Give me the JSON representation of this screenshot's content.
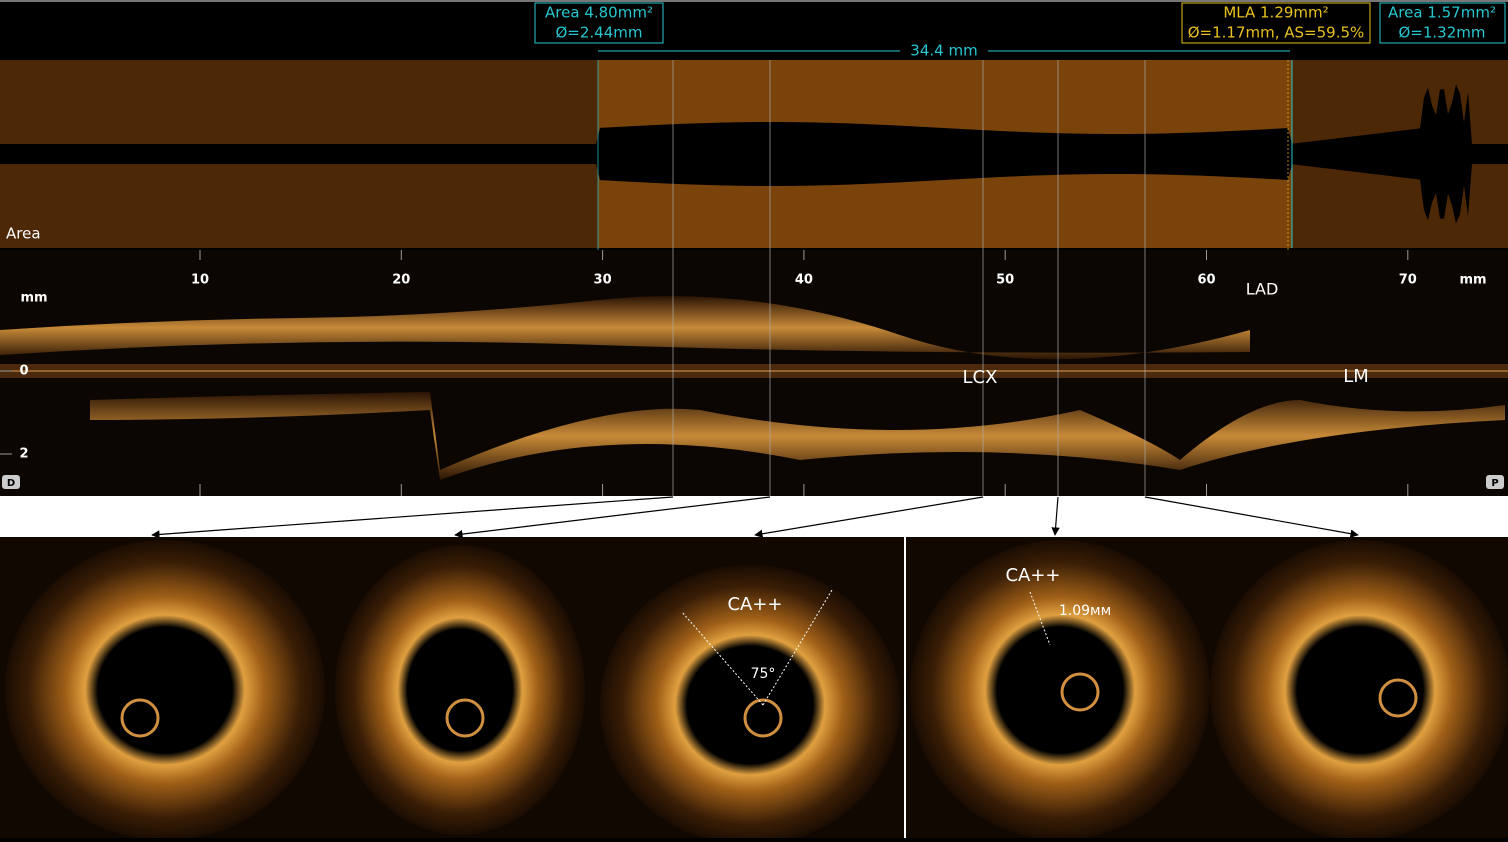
{
  "header": {
    "left_box": {
      "area": "Area 4.80mm²",
      "diameter": "Ø=2.44mm"
    },
    "mla_box": {
      "area": "MLA 1.29mm²",
      "diameter": "Ø=1.17mm, AS=59.5%"
    },
    "right_box": {
      "area": "Area 1.57mm²",
      "diameter": "Ø=1.32mm"
    },
    "length": "34.4 mm"
  },
  "area_panel": {
    "label": "Area"
  },
  "longitudinal": {
    "x_ticks": [
      10,
      20,
      30,
      40,
      50,
      60,
      70
    ],
    "x_unit": "mm",
    "y_ticks": [
      0,
      2
    ],
    "y_unit": "mm",
    "distal": "D",
    "proximal": "P",
    "vessels": {
      "lad": "LAD",
      "lcx": "LCX",
      "lm": "LM"
    }
  },
  "frames": {
    "third": {
      "calcium": "CA++",
      "angle": "75°"
    },
    "fourth": {
      "calcium": "CA++",
      "thickness": "1.09мм"
    }
  }
}
